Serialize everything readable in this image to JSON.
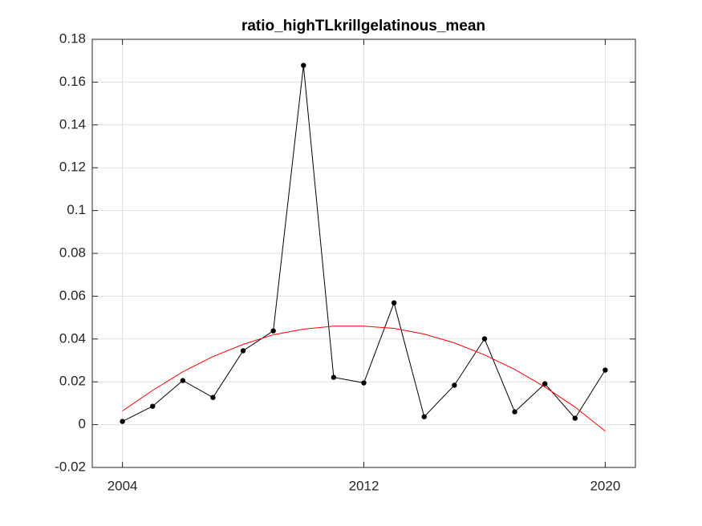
{
  "chart_data": {
    "type": "line",
    "title": "ratio_highTLkrillgelatinous_mean",
    "x": [
      2004,
      2005,
      2006,
      2007,
      2008,
      2009,
      2010,
      2011,
      2012,
      2013,
      2014,
      2015,
      2016,
      2017,
      2018,
      2019,
      2020
    ],
    "series": [
      {
        "color": "#000000",
        "markers": true,
        "values": [
          0.0015,
          0.0086,
          0.0206,
          0.0127,
          0.0345,
          0.0438,
          0.1678,
          0.0221,
          0.0195,
          0.0569,
          0.0037,
          0.0184,
          0.0401,
          0.006,
          0.0191,
          0.003,
          0.0255
        ]
      },
      {
        "color": "#ff0000",
        "markers": false,
        "values": [
          0.0064,
          0.016,
          0.0247,
          0.0318,
          0.0375,
          0.042,
          0.0446,
          0.046,
          0.046,
          0.045,
          0.0423,
          0.0382,
          0.0326,
          0.0258,
          0.0176,
          0.0082,
          -0.003
        ]
      }
    ],
    "xlim": [
      2003,
      2021
    ],
    "xticks": [
      2004,
      2012,
      2020
    ],
    "ylim": [
      -0.02,
      0.18
    ],
    "yticks": [
      -0.02,
      0,
      0.02,
      0.04,
      0.06,
      0.08,
      0.1,
      0.12,
      0.14,
      0.16,
      0.18
    ],
    "grid": true
  }
}
